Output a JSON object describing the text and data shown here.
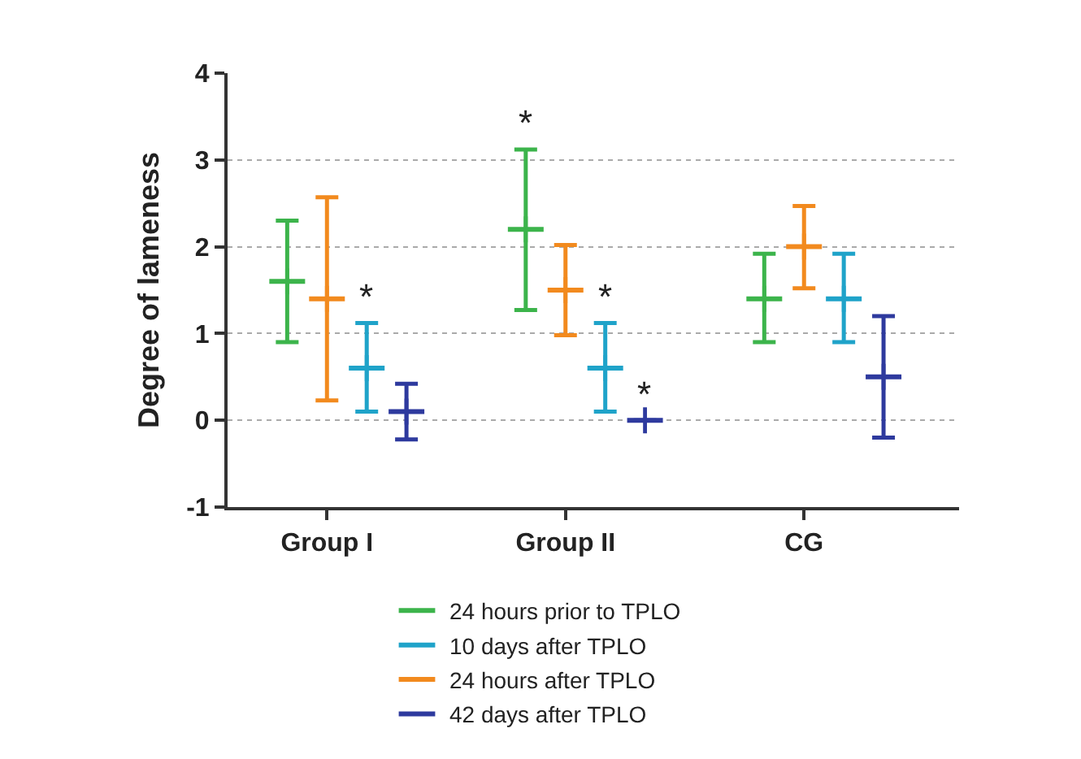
{
  "chart_data": {
    "type": "scatter",
    "ylabel": "Degree of lameness",
    "categories": [
      null,
      "Group I",
      null,
      null,
      null,
      null,
      null,
      "Group II",
      null,
      null,
      null,
      null,
      null,
      "CG",
      null,
      null
    ],
    "ylim": [
      -1,
      4
    ],
    "yticks": [
      -1,
      0,
      1,
      2,
      3,
      4
    ],
    "grid": "y",
    "legend": "bottom",
    "series": [
      {
        "name": "24 hours prior to TPLO",
        "color": "#3cb44b",
        "values": [
          1.6,
          null,
          null,
          null,
          null,
          null,
          2.2,
          null,
          null,
          null,
          null,
          null,
          1.4,
          null,
          null,
          null
        ],
        "errors": [
          [
            0.9,
            2.3
          ],
          null,
          null,
          null,
          null,
          null,
          [
            1.27,
            3.12
          ],
          null,
          null,
          null,
          null,
          null,
          [
            0.9,
            1.92
          ],
          null,
          null,
          null
        ]
      },
      {
        "name": "24 hours after TPLO",
        "color": "#f28a1e",
        "values": [
          null,
          1.4,
          null,
          null,
          null,
          null,
          null,
          1.5,
          null,
          null,
          null,
          null,
          null,
          2.0,
          null,
          null
        ],
        "errors": [
          null,
          [
            0.23,
            2.57
          ],
          null,
          null,
          null,
          null,
          null,
          [
            0.98,
            2.02
          ],
          null,
          null,
          null,
          null,
          null,
          [
            1.52,
            2.47
          ],
          null,
          null
        ]
      },
      {
        "name": "10 days after TPLO",
        "color": "#1fa3c9",
        "values": [
          null,
          null,
          0.6,
          null,
          null,
          null,
          null,
          null,
          0.6,
          null,
          null,
          null,
          null,
          null,
          1.4,
          null
        ],
        "errors": [
          null,
          null,
          [
            0.1,
            1.12
          ],
          null,
          null,
          null,
          null,
          null,
          [
            0.1,
            1.12
          ],
          null,
          null,
          null,
          null,
          null,
          [
            0.9,
            1.92
          ],
          null
        ]
      },
      {
        "name": "42 days after TPLO",
        "color": "#2e3a9e",
        "values": [
          null,
          null,
          null,
          0.1,
          null,
          null,
          null,
          null,
          null,
          0,
          null,
          null,
          null,
          null,
          null,
          0.5
        ],
        "errors": [
          null,
          null,
          null,
          [
            -0.22,
            0.42
          ],
          null,
          null,
          null,
          null,
          null,
          [
            0,
            0
          ],
          null,
          null,
          null,
          null,
          null,
          [
            -0.2,
            1.2
          ]
        ]
      }
    ],
    "annotations": [
      {
        "text": "*",
        "y": 1.12
      },
      {
        "text": "*",
        "y": 3.12
      },
      {
        "text": "*",
        "y": 1.12
      },
      {
        "text": "*",
        "y": 0
      }
    ]
  }
}
